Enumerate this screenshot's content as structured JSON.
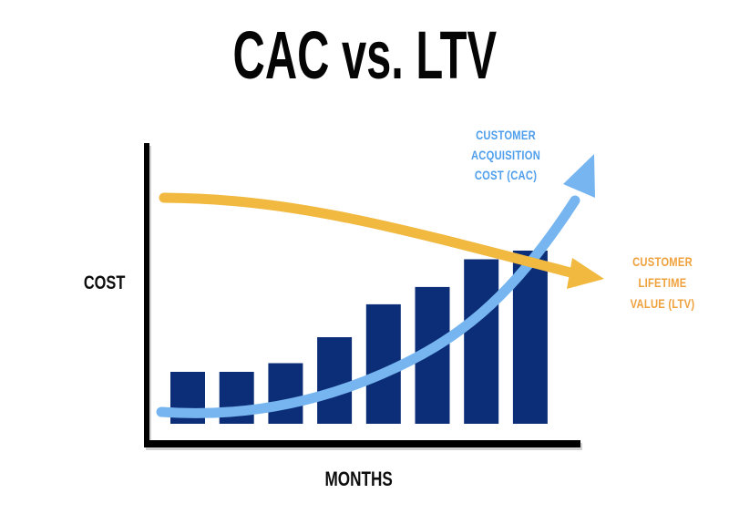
{
  "chart_data": {
    "type": "bar",
    "title": "CAC vs. LTV",
    "xlabel": "MONTHS",
    "ylabel": "COST",
    "axes": {
      "color": "#000000",
      "ticks_visible": false,
      "gridlines": false,
      "legend": "none (inline arrow annotations instead)"
    },
    "bars": {
      "count": 8,
      "color": "#0C2D77",
      "values_relative_pct_of_tallest": [
        30,
        30,
        35,
        50,
        69,
        79,
        95,
        100
      ],
      "note": "unlabeled monthly cost bars rising left to right"
    },
    "lines": [
      {
        "id": "cac",
        "name": "CUSTOMER ACQUISITION COST (CAC)",
        "label_lines": [
          "CUSTOMER",
          "ACQUISITION",
          "COST (CAC)"
        ],
        "label_color": "#4F9FEC",
        "arrow_color": "#76B5F0",
        "trend": "rises exponentially left to right, ends in an up-right arrowhead above the plot",
        "values_pct_of_tallest_bar_sampled": [
          7,
          6,
          9,
          15,
          26,
          39,
          59,
          94,
          129
        ]
      },
      {
        "id": "ltv",
        "name": "CUSTOMER LIFETIME VALUE (LTV)",
        "label_lines": [
          "CUSTOMER",
          "LIFETIME",
          "VALUE (LTV)"
        ],
        "label_color": "#EFA13C",
        "arrow_color": "#F1B93F",
        "trend": "declines gently left to right, ends in a down-right arrowhead; crosses over the CAC line near the last bar",
        "values_pct_of_tallest_bar_sampled": [
          130,
          130,
          128,
          124,
          118,
          110,
          102,
          94,
          87
        ]
      }
    ],
    "crossover": "orange LTV line passes over the blue CAC line near the 8th bar"
  }
}
